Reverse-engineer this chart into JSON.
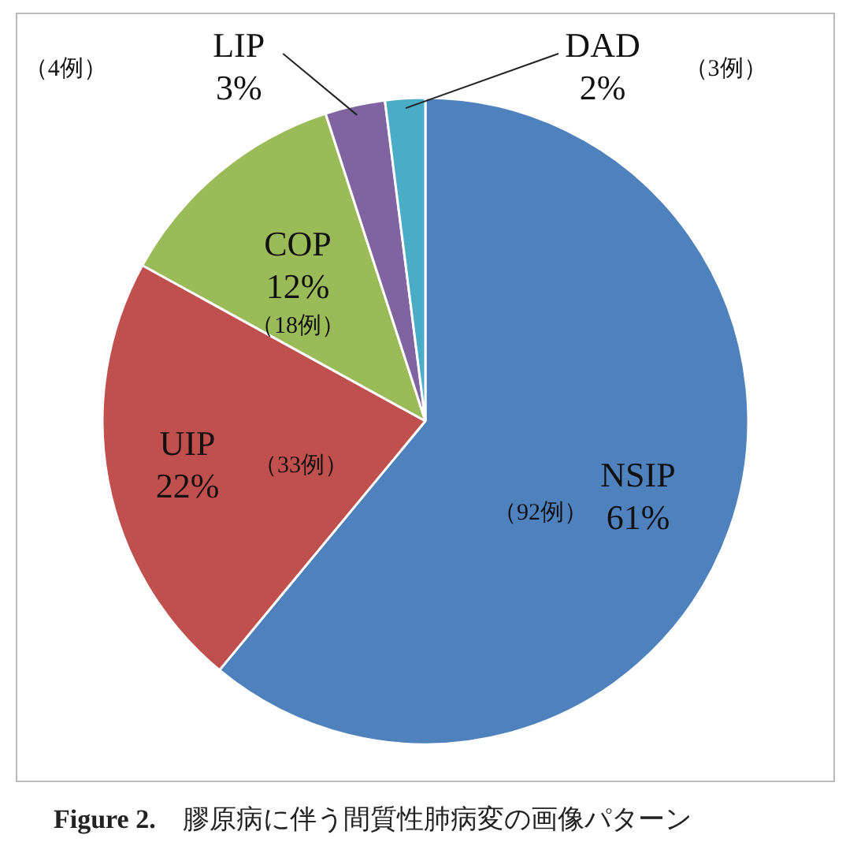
{
  "chart_data": {
    "type": "pie",
    "title": "Figure 2.　膠原病に伴う間質性肺病変の画像パターン",
    "categories": [
      "NSIP",
      "UIP",
      "COP",
      "LIP",
      "DAD"
    ],
    "values": [
      61,
      22,
      12,
      3,
      2
    ],
    "colors": [
      "#4f81bd",
      "#c0504d",
      "#9bbb59",
      "#8064a2",
      "#4bacc6"
    ],
    "value_labels": [
      "61%",
      "22%",
      "12%",
      "3%",
      "2%"
    ],
    "annotations": [
      {
        "text": "（92例）",
        "x": "NSIP"
      },
      {
        "text": "（33例）",
        "x": "UIP"
      },
      {
        "text": "（18例）",
        "x": "COP"
      },
      {
        "text": "（4例）",
        "x": "LIP"
      },
      {
        "text": "（3例）",
        "x": "DAD"
      }
    ]
  }
}
